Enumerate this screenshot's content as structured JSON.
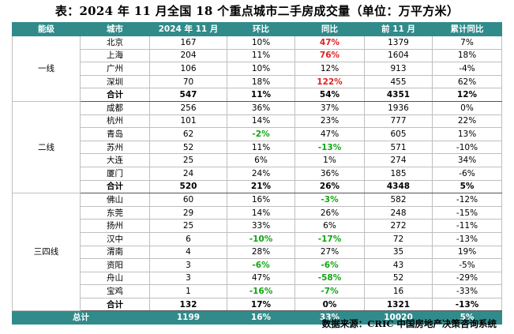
{
  "title": "表：2024 年 11 月全国 18 个重点城市二手房成交量（单位：万平方米）",
  "headers": [
    "能级",
    "城市",
    "2024 年 11 月",
    "环比",
    "同比",
    "前 11 月",
    "累计同比"
  ],
  "tiers": [
    {
      "name": "一线",
      "rows": [
        {
          "city": "北京",
          "m": "167",
          "mom": "10%",
          "yoy": "47%",
          "ytd": "1379",
          "cum": "7%",
          "momc": "",
          "yoyc": "pos"
        },
        {
          "city": "上海",
          "m": "204",
          "mom": "11%",
          "yoy": "76%",
          "ytd": "1604",
          "cum": "18%",
          "momc": "",
          "yoyc": "pos"
        },
        {
          "city": "广州",
          "m": "106",
          "mom": "10%",
          "yoy": "12%",
          "ytd": "913",
          "cum": "-4%",
          "momc": "",
          "yoyc": ""
        },
        {
          "city": "深圳",
          "m": "70",
          "mom": "18%",
          "yoy": "122%",
          "ytd": "455",
          "cum": "62%",
          "momc": "",
          "yoyc": "pos"
        }
      ],
      "subtotal": {
        "label": "合计",
        "m": "547",
        "mom": "11%",
        "yoy": "54%",
        "ytd": "4351",
        "cum": "12%"
      }
    },
    {
      "name": "二线",
      "rows": [
        {
          "city": "成都",
          "m": "256",
          "mom": "36%",
          "yoy": "37%",
          "ytd": "1936",
          "cum": "0%",
          "momc": "",
          "yoyc": ""
        },
        {
          "city": "杭州",
          "m": "101",
          "mom": "14%",
          "yoy": "23%",
          "ytd": "777",
          "cum": "22%",
          "momc": "",
          "yoyc": ""
        },
        {
          "city": "青岛",
          "m": "62",
          "mom": "-2%",
          "yoy": "47%",
          "ytd": "605",
          "cum": "13%",
          "momc": "neg",
          "yoyc": ""
        },
        {
          "city": "苏州",
          "m": "52",
          "mom": "11%",
          "yoy": "-13%",
          "ytd": "571",
          "cum": "-10%",
          "momc": "",
          "yoyc": "neg"
        },
        {
          "city": "大连",
          "m": "25",
          "mom": "6%",
          "yoy": "1%",
          "ytd": "274",
          "cum": "34%",
          "momc": "",
          "yoyc": ""
        },
        {
          "city": "厦门",
          "m": "24",
          "mom": "24%",
          "yoy": "36%",
          "ytd": "185",
          "cum": "-6%",
          "momc": "",
          "yoyc": ""
        }
      ],
      "subtotal": {
        "label": "合计",
        "m": "520",
        "mom": "21%",
        "yoy": "26%",
        "ytd": "4348",
        "cum": "5%"
      }
    },
    {
      "name": "三四线",
      "rows": [
        {
          "city": "佛山",
          "m": "60",
          "mom": "16%",
          "yoy": "-3%",
          "ytd": "582",
          "cum": "-12%",
          "momc": "",
          "yoyc": "neg"
        },
        {
          "city": "东莞",
          "m": "29",
          "mom": "14%",
          "yoy": "26%",
          "ytd": "248",
          "cum": "-15%",
          "momc": "",
          "yoyc": ""
        },
        {
          "city": "扬州",
          "m": "25",
          "mom": "33%",
          "yoy": "6%",
          "ytd": "272",
          "cum": "-11%",
          "momc": "",
          "yoyc": ""
        },
        {
          "city": "汉中",
          "m": "6",
          "mom": "-10%",
          "yoy": "-17%",
          "ytd": "72",
          "cum": "-13%",
          "momc": "neg",
          "yoyc": "neg"
        },
        {
          "city": "渭南",
          "m": "4",
          "mom": "28%",
          "yoy": "27%",
          "ytd": "35",
          "cum": "19%",
          "momc": "",
          "yoyc": ""
        },
        {
          "city": "资阳",
          "m": "3",
          "mom": "-6%",
          "yoy": "-6%",
          "ytd": "43",
          "cum": "-5%",
          "momc": "neg",
          "yoyc": "neg"
        },
        {
          "city": "舟山",
          "m": "3",
          "mom": "47%",
          "yoy": "-58%",
          "ytd": "52",
          "cum": "-29%",
          "momc": "",
          "yoyc": "neg"
        },
        {
          "city": "宝鸡",
          "m": "1",
          "mom": "-16%",
          "yoy": "-7%",
          "ytd": "16",
          "cum": "-33%",
          "momc": "neg",
          "yoyc": "neg"
        }
      ],
      "subtotal": {
        "label": "合计",
        "m": "132",
        "mom": "17%",
        "yoy": "0%",
        "ytd": "1321",
        "cum": "-13%"
      }
    }
  ],
  "total": {
    "label": "总计",
    "m": "1199",
    "mom": "16%",
    "yoy": "33%",
    "ytd": "10020",
    "cum": "5%"
  },
  "source": "数据来源：CRIC 中国房地产决策咨询系统"
}
